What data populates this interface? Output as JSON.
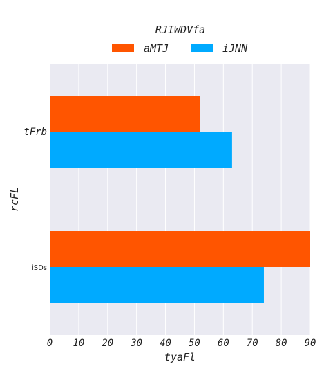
{
  "chart_data": {
    "type": "bar",
    "orientation": "horizontal",
    "title": "RJIWDVfa",
    "xlabel": "tyaFl",
    "ylabel": "rcFL",
    "categories": [
      "tFrb",
      "iSDs"
    ],
    "series": [
      {
        "name": "aMTJ",
        "color": "#ff5500",
        "values": [
          52,
          90
        ]
      },
      {
        "name": "iJNN",
        "color": "#00aaff",
        "values": [
          63,
          74
        ]
      }
    ],
    "xlim": [
      0,
      90
    ],
    "xticks": [
      "0",
      "10",
      "20",
      "30",
      "40",
      "50",
      "60",
      "70",
      "80",
      "90"
    ],
    "grid": true,
    "legend_position": "top-center",
    "background_color": "#eaeaf2",
    "grid_color": "#ffffff"
  }
}
